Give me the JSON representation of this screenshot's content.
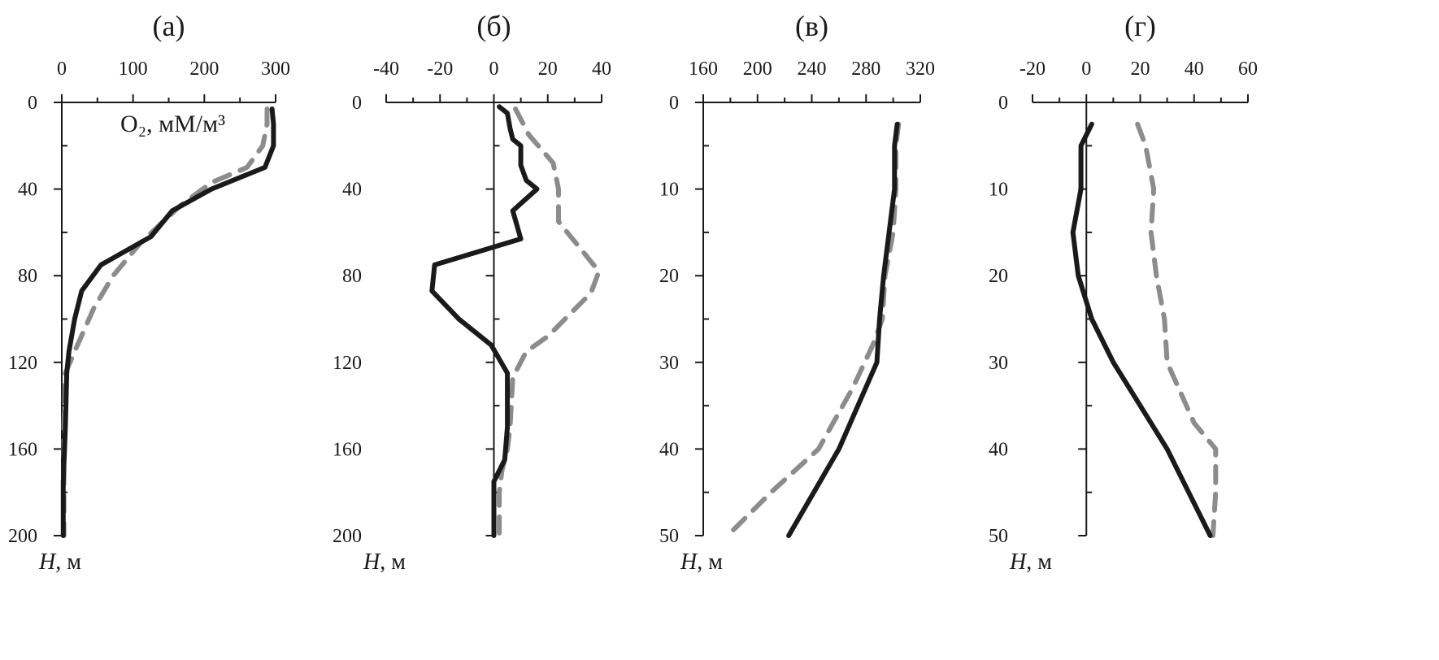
{
  "colors": {
    "axis": "#1a1a1a",
    "series_solid": "#1a1a1a",
    "series_dashed": "#8c8c8c",
    "background": "#ffffff"
  },
  "chart_data": [
    {
      "type": "line",
      "panel": "(а)",
      "title": "(а)",
      "annotation": "O₂, мМ/м³",
      "x_tick_position": "top",
      "xlim": [
        0,
        300
      ],
      "xticks": [
        0,
        100,
        200,
        300
      ],
      "xtick_labels": [
        "0",
        "100",
        "200",
        "300"
      ],
      "ylim": [
        0,
        200
      ],
      "y_inverted": true,
      "yticks": [
        0,
        40,
        80,
        120,
        160,
        200
      ],
      "ytick_labels": [
        "0",
        "40",
        "80",
        "120",
        "160",
        "200"
      ],
      "ylabel_italic": "H",
      "ylabel_unit": ", м",
      "series": [
        {
          "style": "solid",
          "points": [
            [
              295,
              3
            ],
            [
              297,
              10
            ],
            [
              297,
              20
            ],
            [
              285,
              30
            ],
            [
              210,
              40
            ],
            [
              155,
              50
            ],
            [
              125,
              62
            ],
            [
              55,
              75
            ],
            [
              28,
              87
            ],
            [
              18,
              100
            ],
            [
              10,
              115
            ],
            [
              7,
              125
            ],
            [
              5,
              150
            ],
            [
              2,
              175
            ],
            [
              2,
              200
            ]
          ]
        },
        {
          "style": "dashed",
          "points": [
            [
              288,
              3
            ],
            [
              288,
              10
            ],
            [
              282,
              20
            ],
            [
              260,
              30
            ],
            [
              210,
              37
            ],
            [
              165,
              48
            ],
            [
              110,
              65
            ],
            [
              72,
              80
            ],
            [
              45,
              95
            ],
            [
              18,
              115
            ],
            [
              5,
              125
            ],
            [
              3,
              150
            ],
            [
              3,
              175
            ],
            [
              3,
              200
            ]
          ]
        }
      ]
    },
    {
      "type": "line",
      "panel": "(б)",
      "title": "(б)",
      "x_tick_position": "top",
      "xlim": [
        -40,
        40
      ],
      "xticks": [
        -40,
        -20,
        0,
        20,
        40
      ],
      "xtick_labels": [
        "-40",
        "-20",
        "0",
        "20",
        "40"
      ],
      "ylim": [
        0,
        200
      ],
      "y_inverted": true,
      "yticks": [
        0,
        40,
        80,
        120,
        160,
        200
      ],
      "ytick_labels": [
        "0",
        "40",
        "80",
        "120",
        "160",
        "200"
      ],
      "ylabel_italic": "H",
      "ylabel_unit": ", м",
      "series": [
        {
          "style": "solid",
          "points": [
            [
              2,
              2
            ],
            [
              5,
              5
            ],
            [
              6,
              12
            ],
            [
              7,
              17
            ],
            [
              10,
              20
            ],
            [
              10,
              29
            ],
            [
              12,
              36
            ],
            [
              16,
              40
            ],
            [
              7,
              50
            ],
            [
              10,
              63
            ],
            [
              -22,
              75
            ],
            [
              -23,
              87
            ],
            [
              -13,
              100
            ],
            [
              -1,
              112
            ],
            [
              5,
              125
            ],
            [
              5,
              150
            ],
            [
              4,
              165
            ],
            [
              0,
              175
            ],
            [
              0,
              200
            ]
          ]
        },
        {
          "style": "dashed",
          "points": [
            [
              8,
              3
            ],
            [
              13,
              15
            ],
            [
              22,
              28
            ],
            [
              24,
              40
            ],
            [
              24,
              55
            ],
            [
              39,
              78
            ],
            [
              36,
              88
            ],
            [
              20,
              108
            ],
            [
              12,
              115
            ],
            [
              7,
              127
            ],
            [
              6,
              150
            ],
            [
              5,
              160
            ],
            [
              3,
              170
            ],
            [
              2,
              180
            ],
            [
              2,
              200
            ]
          ]
        }
      ]
    },
    {
      "type": "line",
      "panel": "(в)",
      "title": "(в)",
      "x_tick_position": "top",
      "xlim": [
        160,
        320
      ],
      "xticks": [
        160,
        200,
        240,
        280,
        320
      ],
      "xtick_labels": [
        "160",
        "200",
        "240",
        "280",
        "320"
      ],
      "ylim": [
        0,
        50
      ],
      "y_inverted": true,
      "yticks": [
        0,
        10,
        20,
        30,
        40,
        50
      ],
      "ytick_labels": [
        "0",
        "10",
        "20",
        "30",
        "40",
        "50"
      ],
      "ylabel_italic": "H",
      "ylabel_unit": ", м",
      "series": [
        {
          "style": "solid",
          "points": [
            [
              303,
              2.5
            ],
            [
              301,
              5
            ],
            [
              301,
              10
            ],
            [
              297,
              15
            ],
            [
              293,
              20
            ],
            [
              290,
              25
            ],
            [
              288,
              30
            ],
            [
              260,
              40
            ],
            [
              223,
              50
            ]
          ]
        },
        {
          "style": "dashed",
          "points": [
            [
              304,
              2.5
            ],
            [
              302,
              5
            ],
            [
              302,
              10
            ],
            [
              300,
              15
            ],
            [
              294,
              20
            ],
            [
              292,
              25
            ],
            [
              285,
              28
            ],
            [
              270,
              33
            ],
            [
              245,
              40
            ],
            [
              210,
              45
            ],
            [
              178,
              50
            ]
          ]
        }
      ]
    },
    {
      "type": "line",
      "panel": "(г)",
      "title": "(г)",
      "x_tick_position": "top",
      "xlim": [
        -20,
        60
      ],
      "xticks": [
        -20,
        0,
        20,
        40,
        60
      ],
      "xtick_labels": [
        "-20",
        "0",
        "20",
        "40",
        "60"
      ],
      "ylim": [
        0,
        50
      ],
      "y_inverted": true,
      "yticks": [
        0,
        10,
        20,
        30,
        40,
        50
      ],
      "ytick_labels": [
        "0",
        "10",
        "20",
        "30",
        "40",
        "50"
      ],
      "ylabel_italic": "H",
      "ylabel_unit": ", м",
      "series": [
        {
          "style": "solid",
          "points": [
            [
              2,
              2.5
            ],
            [
              -2,
              5
            ],
            [
              -2,
              10
            ],
            [
              -5,
              15
            ],
            [
              -3,
              20
            ],
            [
              2,
              25
            ],
            [
              10,
              30
            ],
            [
              30,
              40
            ],
            [
              46,
              50
            ]
          ]
        },
        {
          "style": "dashed",
          "points": [
            [
              19,
              2.5
            ],
            [
              22,
              5
            ],
            [
              25,
              10
            ],
            [
              24,
              15
            ],
            [
              26,
              20
            ],
            [
              29,
              25
            ],
            [
              30,
              30
            ],
            [
              40,
              37
            ],
            [
              48,
              40
            ],
            [
              48,
              45
            ],
            [
              47,
              50
            ]
          ]
        }
      ]
    }
  ]
}
